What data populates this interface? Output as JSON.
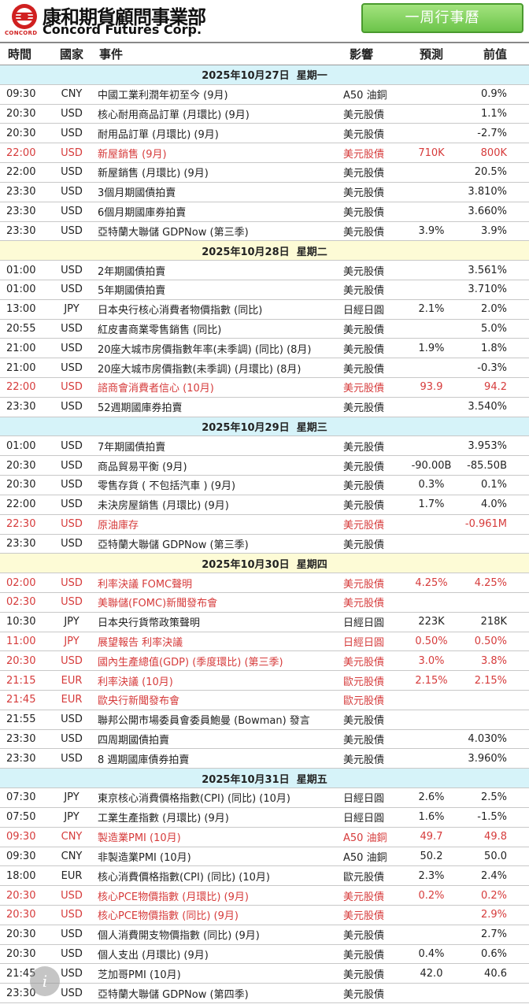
{
  "header": {
    "company_cn": "康和期貨顧問事業部",
    "company_en": "Concord Futures Corp.",
    "logo_small": "CONCORD",
    "week_button": "一周行事曆",
    "colors": {
      "accent_green": "#6cc44a",
      "logo_red": "#d02020",
      "highlight_red": "#d63b3b",
      "date_blue": "#d6f3f9",
      "date_yellow": "#fdfbd6"
    }
  },
  "columns": {
    "time": "時間",
    "country": "國家",
    "event": "事件",
    "impact": "影響",
    "forecast": "預測",
    "previous": "前值"
  },
  "days": [
    {
      "date": "2025年10月27日",
      "weekday": "星期一",
      "color": "blue",
      "events": [
        {
          "time": "09:30",
          "country": "CNY",
          "event": "中國工業利潤年初至今 (9月)",
          "impact": "A50 油銅",
          "forecast": "",
          "previous": "0.9%",
          "red": false
        },
        {
          "time": "20:30",
          "country": "USD",
          "event": "核心耐用商品訂單 (月環比) (9月)",
          "impact": "美元股債",
          "forecast": "",
          "previous": "1.1%",
          "red": false
        },
        {
          "time": "20:30",
          "country": "USD",
          "event": "耐用品訂單 (月環比) (9月)",
          "impact": "美元股債",
          "forecast": "",
          "previous": "-2.7%",
          "red": false
        },
        {
          "time": "22:00",
          "country": "USD",
          "event": "新屋銷售 (9月)",
          "impact": "美元股債",
          "forecast": "710K",
          "previous": "800K",
          "red": true
        },
        {
          "time": "22:00",
          "country": "USD",
          "event": "新屋銷售 (月環比) (9月)",
          "impact": "美元股債",
          "forecast": "",
          "previous": "20.5%",
          "red": false
        },
        {
          "time": "23:30",
          "country": "USD",
          "event": "3個月期國債拍賣",
          "impact": "美元股債",
          "forecast": "",
          "previous": "3.810%",
          "red": false
        },
        {
          "time": "23:30",
          "country": "USD",
          "event": "6個月期國庫券拍賣",
          "impact": "美元股債",
          "forecast": "",
          "previous": "3.660%",
          "red": false
        },
        {
          "time": "23:30",
          "country": "USD",
          "event": "亞特蘭大聯儲 GDPNow (第三季)",
          "impact": "美元股債",
          "forecast": "3.9%",
          "previous": "3.9%",
          "red": false
        }
      ]
    },
    {
      "date": "2025年10月28日",
      "weekday": "星期二",
      "color": "yellow",
      "events": [
        {
          "time": "01:00",
          "country": "USD",
          "event": "2年期國債拍賣",
          "impact": "美元股債",
          "forecast": "",
          "previous": "3.561%",
          "red": false
        },
        {
          "time": "01:00",
          "country": "USD",
          "event": "5年期國債拍賣",
          "impact": "美元股債",
          "forecast": "",
          "previous": "3.710%",
          "red": false
        },
        {
          "time": "13:00",
          "country": "JPY",
          "event": "日本央行核心消費者物價指數 (同比)",
          "impact": "日經日圓",
          "forecast": "2.1%",
          "previous": "2.0%",
          "red": false
        },
        {
          "time": "20:55",
          "country": "USD",
          "event": "紅皮書商業零售銷售 (同比)",
          "impact": "美元股債",
          "forecast": "",
          "previous": "5.0%",
          "red": false
        },
        {
          "time": "21:00",
          "country": "USD",
          "event": "20座大城市房價指數年率(未季調) (同比) (8月)",
          "impact": "美元股債",
          "forecast": "1.9%",
          "previous": "1.8%",
          "red": false
        },
        {
          "time": "21:00",
          "country": "USD",
          "event": "20座大城市房價指數(未季調) (月環比) (8月)",
          "impact": "美元股債",
          "forecast": "",
          "previous": "-0.3%",
          "red": false
        },
        {
          "time": "22:00",
          "country": "USD",
          "event": "諮商會消費者信心 (10月)",
          "impact": "美元股債",
          "forecast": "93.9",
          "previous": "94.2",
          "red": true
        },
        {
          "time": "23:30",
          "country": "USD",
          "event": "52週期國庫券拍賣",
          "impact": "美元股債",
          "forecast": "",
          "previous": "3.540%",
          "red": false
        }
      ]
    },
    {
      "date": "2025年10月29日",
      "weekday": "星期三",
      "color": "blue",
      "events": [
        {
          "time": "01:00",
          "country": "USD",
          "event": "7年期國債拍賣",
          "impact": "美元股債",
          "forecast": "",
          "previous": "3.953%",
          "red": false
        },
        {
          "time": "20:30",
          "country": "USD",
          "event": "商品貿易平衡 (9月)",
          "impact": "美元股債",
          "forecast": "-90.00B",
          "previous": "-85.50B",
          "red": false
        },
        {
          "time": "20:30",
          "country": "USD",
          "event": "零售存貨 ( 不包括汽車 ) (9月)",
          "impact": "美元股債",
          "forecast": "0.3%",
          "previous": "0.1%",
          "red": false
        },
        {
          "time": "22:00",
          "country": "USD",
          "event": "未決房屋銷售 (月環比) (9月)",
          "impact": "美元股債",
          "forecast": "1.7%",
          "previous": "4.0%",
          "red": false
        },
        {
          "time": "22:30",
          "country": "USD",
          "event": "原油庫存",
          "impact": "美元股債",
          "forecast": "",
          "previous": "-0.961M",
          "red": true
        },
        {
          "time": "23:30",
          "country": "USD",
          "event": "亞特蘭大聯儲 GDPNow (第三季)",
          "impact": "美元股債",
          "forecast": "",
          "previous": "",
          "red": false
        }
      ]
    },
    {
      "date": "2025年10月30日",
      "weekday": "星期四",
      "color": "yellow",
      "events": [
        {
          "time": "02:00",
          "country": "USD",
          "event": "利率決議 FOMC聲明",
          "impact": "美元股債",
          "forecast": "4.25%",
          "previous": "4.25%",
          "red": true
        },
        {
          "time": "02:30",
          "country": "USD",
          "event": "美聯儲(FOMC)新聞發布會",
          "impact": "美元股債",
          "forecast": "",
          "previous": "",
          "red": true
        },
        {
          "time": "10:30",
          "country": "JPY",
          "event": "日本央行貨幣政策聲明",
          "impact": "日經日圓",
          "forecast": "223K",
          "previous": "218K",
          "red": false
        },
        {
          "time": "11:00",
          "country": "JPY",
          "event": "展望報告 利率決議",
          "impact": "日經日圓",
          "forecast": "0.50%",
          "previous": "0.50%",
          "red": true
        },
        {
          "time": "20:30",
          "country": "USD",
          "event": "國內生產總值(GDP) (季度環比) (第三季)",
          "impact": "美元股債",
          "forecast": "3.0%",
          "previous": "3.8%",
          "red": true
        },
        {
          "time": "21:15",
          "country": "EUR",
          "event": "利率決議 (10月)",
          "impact": "歐元股債",
          "forecast": "2.15%",
          "previous": "2.15%",
          "red": true
        },
        {
          "time": "21:45",
          "country": "EUR",
          "event": "歐央行新聞發布會",
          "impact": "歐元股債",
          "forecast": "",
          "previous": "",
          "red": true
        },
        {
          "time": "21:55",
          "country": "USD",
          "event": "聯邦公開市場委員會委員鮑曼 (Bowman) 發言",
          "impact": "美元股債",
          "forecast": "",
          "previous": "",
          "red": false
        },
        {
          "time": "23:30",
          "country": "USD",
          "event": "四周期國債拍賣",
          "impact": "美元股債",
          "forecast": "",
          "previous": "4.030%",
          "red": false
        },
        {
          "time": "23:30",
          "country": "USD",
          "event": "8 週期國庫債券拍賣",
          "impact": "美元股債",
          "forecast": "",
          "previous": "3.960%",
          "red": false
        }
      ]
    },
    {
      "date": "2025年10月31日",
      "weekday": "星期五",
      "color": "blue",
      "events": [
        {
          "time": "07:30",
          "country": "JPY",
          "event": "東京核心消費價格指數(CPI) (同比) (10月)",
          "impact": "日經日圓",
          "forecast": "2.6%",
          "previous": "2.5%",
          "red": false
        },
        {
          "time": "07:50",
          "country": "JPY",
          "event": "工業生產指數 (月環比) (9月)",
          "impact": "日經日圓",
          "forecast": "1.6%",
          "previous": "-1.5%",
          "red": false
        },
        {
          "time": "09:30",
          "country": "CNY",
          "event": "製造業PMI (10月)",
          "impact": "A50 油銅",
          "forecast": "49.7",
          "previous": "49.8",
          "red": true
        },
        {
          "time": "09:30",
          "country": "CNY",
          "event": "非製造業PMI (10月)",
          "impact": "A50 油銅",
          "forecast": "50.2",
          "previous": "50.0",
          "red": false
        },
        {
          "time": "18:00",
          "country": "EUR",
          "event": "核心消費價格指數(CPI) (同比) (10月)",
          "impact": "歐元股債",
          "forecast": "2.3%",
          "previous": "2.4%",
          "red": false
        },
        {
          "time": "20:30",
          "country": "USD",
          "event": "核心PCE物價指數 (月環比) (9月)",
          "impact": "美元股債",
          "forecast": "0.2%",
          "previous": "0.2%",
          "red": true
        },
        {
          "time": "20:30",
          "country": "USD",
          "event": "核心PCE物價指數 (同比) (9月)",
          "impact": "美元股債",
          "forecast": "",
          "previous": "2.9%",
          "red": true
        },
        {
          "time": "20:30",
          "country": "USD",
          "event": "個人消費開支物價指數 (同比) (9月)",
          "impact": "美元股債",
          "forecast": "",
          "previous": "2.7%",
          "red": false
        },
        {
          "time": "20:30",
          "country": "USD",
          "event": "個人支出 (月環比) (9月)",
          "impact": "美元股債",
          "forecast": "0.4%",
          "previous": "0.6%",
          "red": false
        },
        {
          "time": "21:45",
          "country": "USD",
          "event": "芝加哥PMI (10月)",
          "impact": "美元股債",
          "forecast": "42.0",
          "previous": "40.6",
          "red": false
        },
        {
          "time": "23:30",
          "country": "USD",
          "event": "亞特蘭大聯儲 GDPNow (第四季)",
          "impact": "美元股債",
          "forecast": "",
          "previous": "",
          "red": false
        }
      ]
    }
  ],
  "overlay": {
    "info_glyph": "i"
  }
}
